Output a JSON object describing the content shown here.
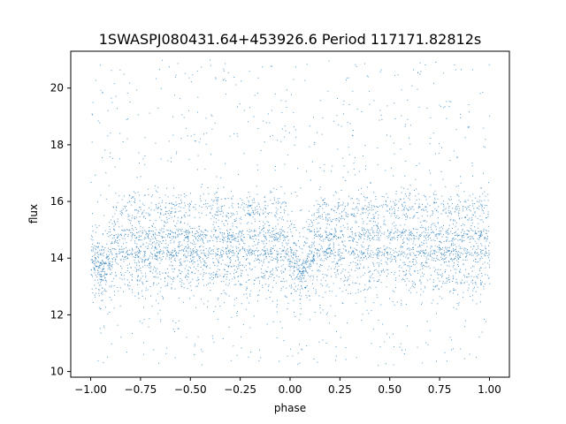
{
  "chart_data": {
    "type": "scatter",
    "title": "1SWASPJ080431.64+453926.6 Period 117171.82812s",
    "xlabel": "phase",
    "ylabel": "flux",
    "xlim": [
      -1.1,
      1.1
    ],
    "ylim": [
      9.8,
      21.3
    ],
    "x_ticks": [
      -1.0,
      -0.75,
      -0.5,
      -0.25,
      0.0,
      0.25,
      0.5,
      0.75,
      1.0
    ],
    "x_tick_labels": [
      "−1.00",
      "−0.75",
      "−0.50",
      "−0.25",
      "0.00",
      "0.25",
      "0.50",
      "0.75",
      "1.00"
    ],
    "y_ticks": [
      10,
      12,
      14,
      16,
      18,
      20
    ],
    "y_tick_labels": [
      "10",
      "12",
      "14",
      "16",
      "18",
      "20"
    ],
    "grid": false,
    "marker_color": "#1f77b4",
    "series": [
      {
        "phase_range": [
          -1.0,
          1.0
        ],
        "bands": [
          {
            "flux_center": 15.7,
            "spread": 0.35
          },
          {
            "flux_center": 14.8,
            "spread": 0.15
          },
          {
            "flux_center": 14.2,
            "spread": 0.15
          },
          {
            "flux_center": 13.5,
            "spread": 0.45
          }
        ],
        "dip_phases": [
          -0.95,
          0.05
        ],
        "dip_flux": 12.6,
        "scatter_flux_range": [
          10.2,
          21.0
        ]
      }
    ]
  }
}
